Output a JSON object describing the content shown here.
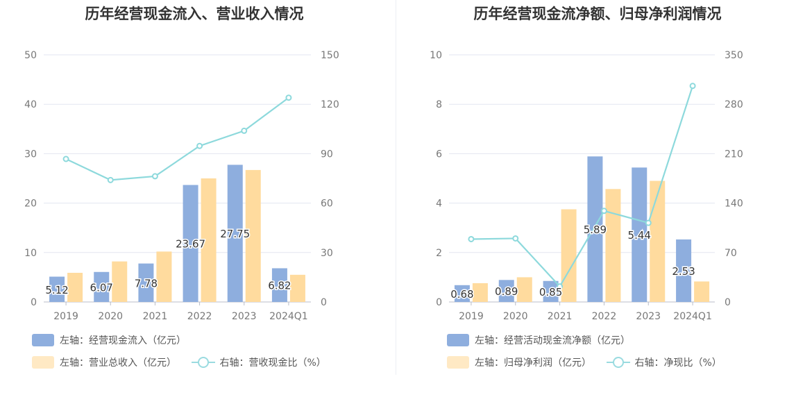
{
  "chart_data": [
    {
      "type": "bar",
      "title": "历年经营现金流入、营业收入情况",
      "categories": [
        "2019",
        "2020",
        "2021",
        "2022",
        "2023",
        "2024Q1"
      ],
      "y_left": {
        "min": 0,
        "max": 50,
        "ticks": [
          0,
          10,
          20,
          30,
          40,
          50
        ]
      },
      "y_right": {
        "min": 0,
        "max": 150,
        "ticks": [
          0,
          30,
          60,
          90,
          120,
          150
        ]
      },
      "grid": true,
      "legend_position": "bottom-left",
      "series": [
        {
          "name": "左轴：经营现金流入（亿元）",
          "type": "bar",
          "axis": "left",
          "color": "#8eaede",
          "values": [
            5.12,
            6.07,
            7.78,
            23.67,
            27.75,
            6.82
          ],
          "labels": [
            "5.12",
            "6.07",
            "7.78",
            "23.67",
            "27.75",
            "6.82"
          ]
        },
        {
          "name": "左轴：营业总收入（亿元）",
          "type": "bar",
          "axis": "left",
          "color": "#ffdb9e",
          "values": [
            5.9,
            8.2,
            10.2,
            25.0,
            26.7,
            5.5
          ]
        },
        {
          "name": "右轴：营收现金比（%）",
          "type": "line",
          "axis": "right",
          "color": "#8dd9dc",
          "values": [
            86.8,
            74.0,
            76.3,
            94.7,
            103.9,
            124.0
          ]
        }
      ]
    },
    {
      "type": "bar",
      "title": "历年经营现金流净额、归母净利润情况",
      "categories": [
        "2019",
        "2020",
        "2021",
        "2022",
        "2023",
        "2024Q1"
      ],
      "y_left": {
        "min": 0,
        "max": 10,
        "ticks": [
          0,
          2,
          4,
          6,
          8,
          10
        ]
      },
      "y_right": {
        "min": 0,
        "max": 350,
        "ticks": [
          0,
          70,
          140,
          210,
          280,
          350
        ]
      },
      "grid": true,
      "legend_position": "bottom-left",
      "series": [
        {
          "name": "左轴：经营活动现金流净额（亿元）",
          "type": "bar",
          "axis": "left",
          "color": "#8eaede",
          "values": [
            0.68,
            0.89,
            0.85,
            5.89,
            5.44,
            2.53
          ],
          "labels": [
            "0.68",
            "0.89",
            "0.85",
            "5.89",
            "5.44",
            "2.53"
          ]
        },
        {
          "name": "左轴：归母净利润（亿元）",
          "type": "bar",
          "axis": "left",
          "color": "#ffdb9e",
          "values": [
            0.76,
            1.0,
            3.75,
            4.57,
            4.9,
            0.83
          ]
        },
        {
          "name": "右轴：净现比（%）",
          "type": "line",
          "axis": "right",
          "color": "#8dd9dc",
          "values": [
            89,
            90,
            22,
            129,
            112,
            306
          ]
        }
      ]
    }
  ]
}
